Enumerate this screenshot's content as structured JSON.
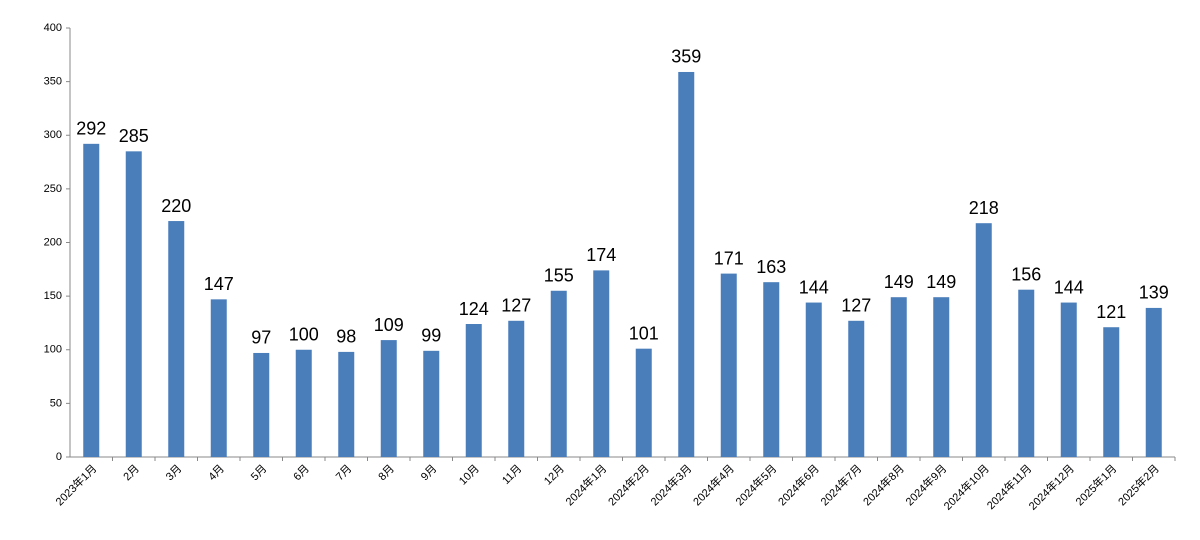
{
  "chart_data": {
    "type": "bar",
    "categories": [
      "2023年1月",
      "2月",
      "3月",
      "4月",
      "5月",
      "6月",
      "7月",
      "8月",
      "9月",
      "10月",
      "11月",
      "12月",
      "2024年1月",
      "2024年2月",
      "2024年3月",
      "2024年4月",
      "2024年5月",
      "2024年6月",
      "2024年7月",
      "2024年8月",
      "2024年9月",
      "2024年10月",
      "2024年11月",
      "2024年12月",
      "2025年1月",
      "2025年2月"
    ],
    "values": [
      292,
      285,
      220,
      147,
      97,
      100,
      98,
      109,
      99,
      124,
      127,
      155,
      174,
      101,
      359,
      171,
      163,
      144,
      127,
      149,
      149,
      218,
      156,
      144,
      121,
      139
    ],
    "color": "#4a7ebb",
    "ylim": [
      0,
      400
    ],
    "yticks": [
      0,
      50,
      100,
      150,
      200,
      250,
      300,
      350,
      400
    ],
    "grid": false
  }
}
